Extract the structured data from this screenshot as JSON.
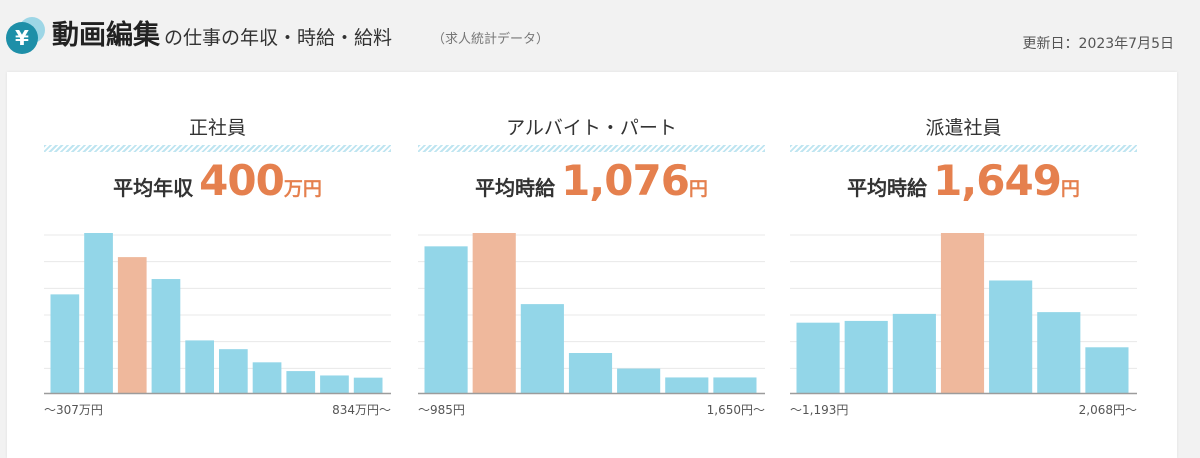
{
  "header": {
    "title_main": "動画編集",
    "title_sub": "の仕事の年収・時給・給料",
    "title_note": "（求人統計データ）",
    "update_date": "更新日：2023年7月5日"
  },
  "colors": {
    "bar": "#93d6e8",
    "highlight": "#efb89c",
    "accent": "#e5804e",
    "grid": "#e8e8e8",
    "axis": "#9c9c9c"
  },
  "chart_data": [
    {
      "type": "bar",
      "title": "正社員",
      "avg_label": "平均年収",
      "avg_value": "400",
      "avg_unit": "万円",
      "x_min_label": "〜307万円",
      "x_max_label": "834万円〜",
      "values": [
        45,
        73,
        62,
        52,
        24,
        20,
        14,
        10,
        8,
        7
      ],
      "highlight_index": 2,
      "ylim": [
        0,
        73
      ],
      "grid": true
    },
    {
      "type": "bar",
      "title": "アルバイト・パート",
      "avg_label": "平均時給",
      "avg_value": "1,076",
      "avg_unit": "円",
      "x_min_label": "〜985円",
      "x_max_label": "1,650円〜",
      "values": [
        66,
        72,
        40,
        18,
        11,
        7,
        7
      ],
      "highlight_index": 1,
      "ylim": [
        0,
        72
      ],
      "grid": true
    },
    {
      "type": "bar",
      "title": "派遣社員",
      "avg_label": "平均時給",
      "avg_value": "1,649",
      "avg_unit": "円",
      "x_min_label": "〜1,193円",
      "x_max_label": "2,068円〜",
      "values": [
        40,
        41,
        45,
        91,
        64,
        46,
        26
      ],
      "highlight_index": 3,
      "ylim": [
        0,
        91
      ],
      "grid": true
    }
  ]
}
